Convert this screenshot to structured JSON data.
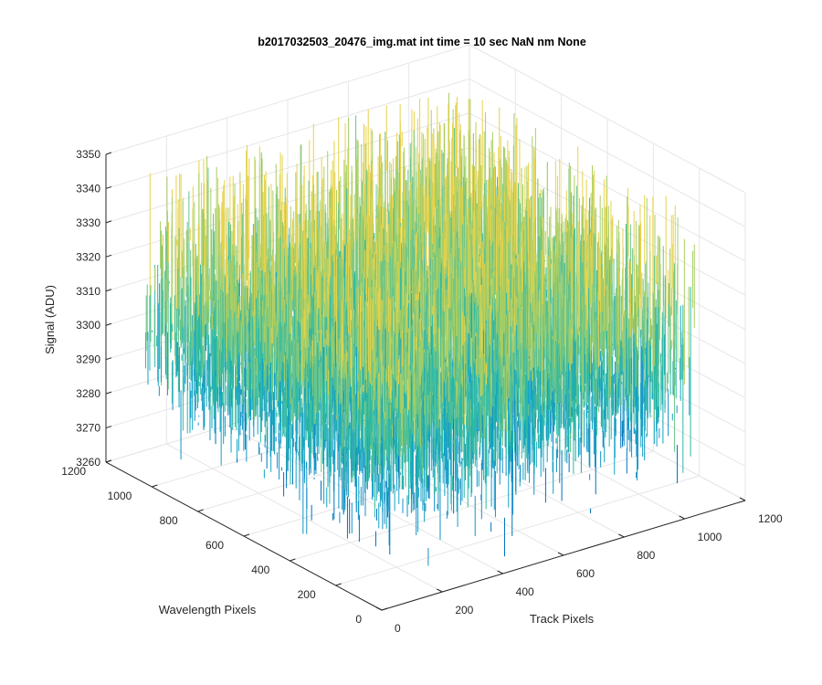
{
  "chart_data": {
    "type": "surface",
    "title": "b2017032503_20476_img.mat int time = 10 sec  NaN nm None",
    "zlabel": "Signal (ADU)",
    "xlabel": "Track Pixels",
    "ylabel": "Wavelength Pixels",
    "xlim": [
      0,
      1200
    ],
    "ylim": [
      0,
      1200
    ],
    "zlim": [
      3260,
      3350
    ],
    "x_ticks": [
      "0",
      "200",
      "400",
      "600",
      "800",
      "1000",
      "1200"
    ],
    "y_ticks": [
      "0",
      "200",
      "400",
      "600",
      "800",
      "1000",
      "1200"
    ],
    "z_ticks": [
      "3260",
      "3270",
      "3280",
      "3290",
      "3300",
      "3310",
      "3320",
      "3330",
      "3340",
      "3350"
    ],
    "x_extent": [
      0,
      1024
    ],
    "y_extent": [
      0,
      1024
    ],
    "signal_mean": 3300,
    "signal_range": [
      3270,
      3340
    ],
    "grid": true,
    "colormap": "parula",
    "colors": {
      "low": "#0072bd",
      "mid": "#2db9a5",
      "high": "#e6d24b",
      "grid": "#e6e6e6",
      "axis": "#262626"
    }
  }
}
